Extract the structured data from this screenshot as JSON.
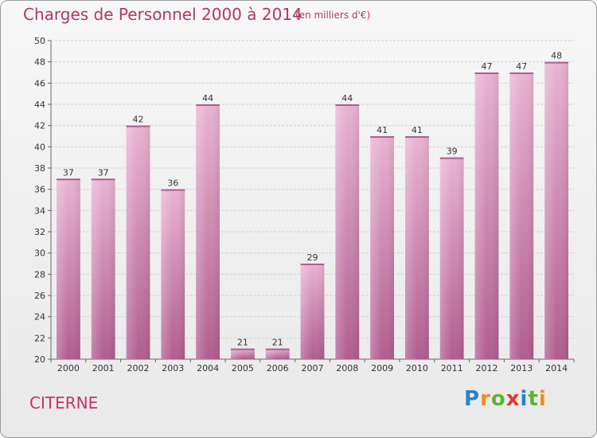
{
  "title": "Charges de Personnel 2000 à 2014",
  "subtitle": "(en milliers d'€)",
  "commune": "CITERNE",
  "logo": {
    "letters": [
      "P",
      "r",
      "o",
      "x",
      "i",
      "t",
      "i"
    ],
    "colors": [
      "#2a82c8",
      "#f08c1e",
      "#62b22f",
      "#e5352d",
      "#2a82c8",
      "#62b22f",
      "#f08c1e"
    ]
  },
  "colors": {
    "bar": "#cf7fae",
    "bar_light": "#e9b3d2",
    "bar_dark": "#b05d8f",
    "title": "#b03a5d"
  },
  "chart_data": {
    "type": "bar",
    "title": "Charges de Personnel 2000 à 2014",
    "subtitle": "(en milliers d'€)",
    "categories": [
      "2000",
      "2001",
      "2002",
      "2003",
      "2004",
      "2005",
      "2006",
      "2007",
      "2008",
      "2009",
      "2010",
      "2011",
      "2012",
      "2013",
      "2014"
    ],
    "values": [
      37,
      37,
      42,
      36,
      44,
      21,
      21,
      29,
      44,
      41,
      41,
      39,
      47,
      47,
      48
    ],
    "ylim": [
      20,
      50
    ],
    "yticks": [
      20,
      22,
      24,
      26,
      28,
      30,
      32,
      34,
      36,
      38,
      40,
      42,
      44,
      46,
      48,
      50
    ],
    "grid": true
  }
}
